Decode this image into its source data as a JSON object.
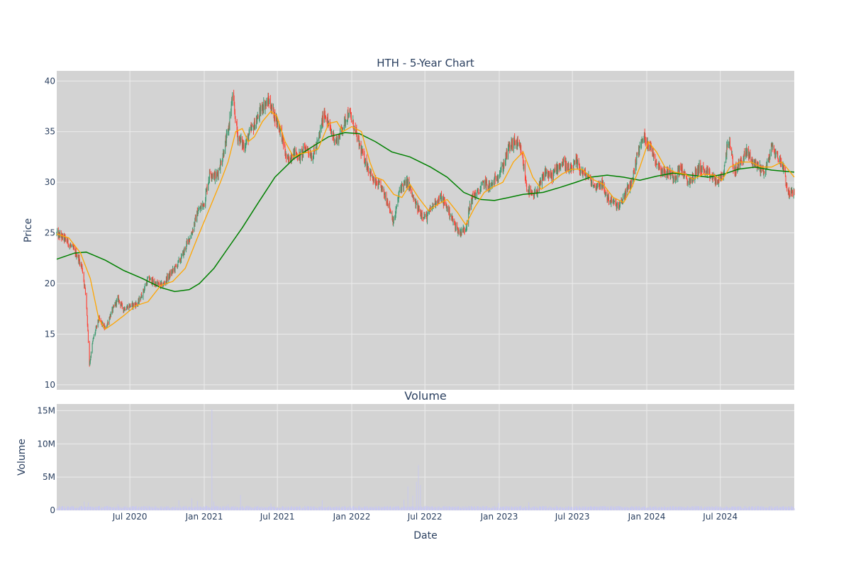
{
  "chart_data": [
    {
      "type": "candlestick",
      "title": "HTH - 5-Year Chart",
      "ylabel": "Price",
      "ylim": [
        9.5,
        41
      ],
      "yticks": [
        10,
        15,
        20,
        25,
        30,
        35,
        40
      ],
      "x_range": [
        "2020-01-02",
        "2024-12-31"
      ],
      "colors": {
        "up": "#3d9970",
        "down": "#ff4136",
        "ma_short": "#ffa500",
        "ma_long": "#008000",
        "plot_bg": "#d3d3d3",
        "grid": "#ececec"
      },
      "close_series": [
        [
          "2020-01-02",
          24.9
        ],
        [
          "2020-01-20",
          24.5
        ],
        [
          "2020-02-10",
          23.5
        ],
        [
          "2020-02-25",
          22.5
        ],
        [
          "2020-03-05",
          21.5
        ],
        [
          "2020-03-15",
          18.5
        ],
        [
          "2020-03-23",
          12.0
        ],
        [
          "2020-04-01",
          14.5
        ],
        [
          "2020-04-15",
          16.5
        ],
        [
          "2020-05-01",
          15.5
        ],
        [
          "2020-05-15",
          17.0
        ],
        [
          "2020-06-01",
          18.5
        ],
        [
          "2020-06-15",
          17.5
        ],
        [
          "2020-07-01",
          17.8
        ],
        [
          "2020-07-20",
          18.0
        ],
        [
          "2020-08-01",
          19.0
        ],
        [
          "2020-08-15",
          20.5
        ],
        [
          "2020-09-01",
          20.0
        ],
        [
          "2020-09-20",
          19.8
        ],
        [
          "2020-10-01",
          20.5
        ],
        [
          "2020-10-20",
          21.5
        ],
        [
          "2020-11-05",
          22.5
        ],
        [
          "2020-11-20",
          24.0
        ],
        [
          "2020-12-01",
          25.0
        ],
        [
          "2020-12-15",
          27.0
        ],
        [
          "2021-01-01",
          28.0
        ],
        [
          "2021-01-15",
          31.0
        ],
        [
          "2021-01-31",
          30.5
        ],
        [
          "2021-02-15",
          32.5
        ],
        [
          "2021-03-01",
          35.0
        ],
        [
          "2021-03-12",
          38.5
        ],
        [
          "2021-03-25",
          34.5
        ],
        [
          "2021-04-10",
          33.5
        ],
        [
          "2021-04-25",
          35.0
        ],
        [
          "2021-05-10",
          36.0
        ],
        [
          "2021-05-25",
          37.5
        ],
        [
          "2021-06-10",
          38.0
        ],
        [
          "2021-06-25",
          36.5
        ],
        [
          "2021-07-10",
          35.0
        ],
        [
          "2021-07-25",
          32.0
        ],
        [
          "2021-08-10",
          33.0
        ],
        [
          "2021-08-25",
          32.5
        ],
        [
          "2021-09-10",
          33.5
        ],
        [
          "2021-09-25",
          32.5
        ],
        [
          "2021-10-10",
          34.0
        ],
        [
          "2021-10-25",
          37.0
        ],
        [
          "2021-11-10",
          35.0
        ],
        [
          "2021-11-25",
          34.0
        ],
        [
          "2021-12-10",
          35.5
        ],
        [
          "2021-12-25",
          37.0
        ],
        [
          "2022-01-10",
          35.0
        ],
        [
          "2022-01-25",
          33.0
        ],
        [
          "2022-02-10",
          31.5
        ],
        [
          "2022-02-25",
          30.0
        ],
        [
          "2022-03-15",
          29.5
        ],
        [
          "2022-04-01",
          28.0
        ],
        [
          "2022-04-15",
          26.0
        ],
        [
          "2022-05-01",
          29.5
        ],
        [
          "2022-05-20",
          30.0
        ],
        [
          "2022-06-05",
          28.0
        ],
        [
          "2022-06-20",
          27.0
        ],
        [
          "2022-07-05",
          26.5
        ],
        [
          "2022-07-25",
          28.0
        ],
        [
          "2022-08-10",
          28.5
        ],
        [
          "2022-08-25",
          27.5
        ],
        [
          "2022-09-10",
          26.0
        ],
        [
          "2022-09-25",
          25.0
        ],
        [
          "2022-10-10",
          25.5
        ],
        [
          "2022-10-25",
          28.5
        ],
        [
          "2022-11-10",
          29.0
        ],
        [
          "2022-11-25",
          30.0
        ],
        [
          "2022-12-10",
          29.5
        ],
        [
          "2022-12-25",
          30.5
        ],
        [
          "2023-01-10",
          31.5
        ],
        [
          "2023-01-25",
          33.5
        ],
        [
          "2023-02-10",
          34.0
        ],
        [
          "2023-02-25",
          33.0
        ],
        [
          "2023-03-10",
          29.5
        ],
        [
          "2023-03-25",
          28.5
        ],
        [
          "2023-04-10",
          29.5
        ],
        [
          "2023-04-25",
          31.0
        ],
        [
          "2023-05-10",
          30.5
        ],
        [
          "2023-05-25",
          31.5
        ],
        [
          "2023-06-10",
          32.0
        ],
        [
          "2023-06-25",
          31.0
        ],
        [
          "2023-07-10",
          32.0
        ],
        [
          "2023-07-25",
          31.0
        ],
        [
          "2023-08-10",
          30.5
        ],
        [
          "2023-08-25",
          29.5
        ],
        [
          "2023-09-10",
          30.0
        ],
        [
          "2023-09-25",
          28.5
        ],
        [
          "2023-10-10",
          28.0
        ],
        [
          "2023-10-25",
          27.5
        ],
        [
          "2023-11-10",
          29.0
        ],
        [
          "2023-11-25",
          30.0
        ],
        [
          "2023-12-10",
          33.0
        ],
        [
          "2023-12-25",
          34.5
        ],
        [
          "2024-01-10",
          33.5
        ],
        [
          "2024-01-25",
          32.0
        ],
        [
          "2024-02-10",
          31.0
        ],
        [
          "2024-02-25",
          31.0
        ],
        [
          "2024-03-10",
          30.5
        ],
        [
          "2024-03-25",
          31.5
        ],
        [
          "2024-04-10",
          30.0
        ],
        [
          "2024-04-25",
          30.5
        ],
        [
          "2024-05-10",
          31.5
        ],
        [
          "2024-05-25",
          31.0
        ],
        [
          "2024-06-10",
          30.5
        ],
        [
          "2024-06-25",
          30.0
        ],
        [
          "2024-07-10",
          31.0
        ],
        [
          "2024-07-20",
          34.5
        ],
        [
          "2024-08-05",
          31.0
        ],
        [
          "2024-08-20",
          32.0
        ],
        [
          "2024-09-05",
          33.0
        ],
        [
          "2024-09-20",
          32.0
        ],
        [
          "2024-10-05",
          31.5
        ],
        [
          "2024-10-20",
          31.0
        ],
        [
          "2024-11-05",
          33.5
        ],
        [
          "2024-11-20",
          32.5
        ],
        [
          "2024-12-05",
          31.5
        ],
        [
          "2024-12-15",
          29.0
        ],
        [
          "2024-12-31",
          28.8
        ]
      ],
      "ma_short_series": [
        [
          "2020-01-02",
          24.9
        ],
        [
          "2020-02-01",
          24.5
        ],
        [
          "2020-03-01",
          23.0
        ],
        [
          "2020-03-25",
          20.5
        ],
        [
          "2020-04-15",
          16.5
        ],
        [
          "2020-05-01",
          15.5
        ],
        [
          "2020-05-20",
          16.0
        ],
        [
          "2020-06-15",
          16.8
        ],
        [
          "2020-07-15",
          17.8
        ],
        [
          "2020-08-15",
          18.2
        ],
        [
          "2020-09-15",
          19.8
        ],
        [
          "2020-10-15",
          20.2
        ],
        [
          "2020-11-15",
          21.5
        ],
        [
          "2020-12-15",
          24.5
        ],
        [
          "2021-01-10",
          27.0
        ],
        [
          "2021-02-10",
          30.0
        ],
        [
          "2021-03-01",
          32.0
        ],
        [
          "2021-03-20",
          35.0
        ],
        [
          "2021-04-05",
          35.3
        ],
        [
          "2021-04-20",
          34.0
        ],
        [
          "2021-05-05",
          34.5
        ],
        [
          "2021-05-25",
          36.0
        ],
        [
          "2021-06-15",
          37.0
        ],
        [
          "2021-06-30",
          36.5
        ],
        [
          "2021-07-20",
          34.0
        ],
        [
          "2021-08-10",
          32.5
        ],
        [
          "2021-08-25",
          32.8
        ],
        [
          "2021-09-20",
          33.0
        ],
        [
          "2021-10-10",
          33.3
        ],
        [
          "2021-11-05",
          35.8
        ],
        [
          "2021-11-25",
          36.0
        ],
        [
          "2021-12-10",
          35.0
        ],
        [
          "2022-01-01",
          35.5
        ],
        [
          "2022-01-25",
          35.0
        ],
        [
          "2022-02-15",
          32.0
        ],
        [
          "2022-03-01",
          30.5
        ],
        [
          "2022-03-20",
          30.2
        ],
        [
          "2022-04-15",
          28.8
        ],
        [
          "2022-05-05",
          28.5
        ],
        [
          "2022-05-25",
          29.8
        ],
        [
          "2022-06-15",
          28.5
        ],
        [
          "2022-07-10",
          27.2
        ],
        [
          "2022-08-01",
          27.8
        ],
        [
          "2022-08-25",
          28.3
        ],
        [
          "2022-09-20",
          27.0
        ],
        [
          "2022-10-10",
          25.8
        ],
        [
          "2022-11-01",
          27.5
        ],
        [
          "2022-11-25",
          29.0
        ],
        [
          "2022-12-15",
          29.5
        ],
        [
          "2023-01-10",
          30.0
        ],
        [
          "2023-02-05",
          32.0
        ],
        [
          "2023-03-01",
          33.0
        ],
        [
          "2023-03-25",
          30.5
        ],
        [
          "2023-04-15",
          29.3
        ],
        [
          "2023-05-10",
          30.0
        ],
        [
          "2023-06-05",
          30.8
        ],
        [
          "2023-06-30",
          31.3
        ],
        [
          "2023-07-25",
          31.3
        ],
        [
          "2023-08-20",
          30.3
        ],
        [
          "2023-09-15",
          29.8
        ],
        [
          "2023-10-10",
          28.5
        ],
        [
          "2023-11-05",
          28.0
        ],
        [
          "2023-11-25",
          29.5
        ],
        [
          "2023-12-15",
          31.5
        ],
        [
          "2024-01-05",
          34.0
        ],
        [
          "2024-01-25",
          33.0
        ],
        [
          "2024-02-15",
          31.5
        ],
        [
          "2024-03-10",
          31.0
        ],
        [
          "2024-04-05",
          30.8
        ],
        [
          "2024-04-25",
          30.3
        ],
        [
          "2024-05-20",
          30.8
        ],
        [
          "2024-06-15",
          30.7
        ],
        [
          "2024-07-05",
          30.2
        ],
        [
          "2024-07-25",
          31.5
        ],
        [
          "2024-08-20",
          32.0
        ],
        [
          "2024-09-15",
          32.0
        ],
        [
          "2024-10-10",
          31.5
        ],
        [
          "2024-11-05",
          31.5
        ],
        [
          "2024-11-30",
          32.0
        ],
        [
          "2024-12-15",
          31.3
        ],
        [
          "2024-12-31",
          30.5
        ]
      ],
      "ma_long_series": [
        [
          "2020-01-02",
          22.4
        ],
        [
          "2020-02-15",
          23.0
        ],
        [
          "2020-03-15",
          23.1
        ],
        [
          "2020-05-01",
          22.3
        ],
        [
          "2020-06-15",
          21.3
        ],
        [
          "2020-08-01",
          20.5
        ],
        [
          "2020-09-15",
          19.6
        ],
        [
          "2020-10-20",
          19.2
        ],
        [
          "2020-11-25",
          19.4
        ],
        [
          "2020-12-20",
          20.0
        ],
        [
          "2021-01-25",
          21.5
        ],
        [
          "2021-03-01",
          23.5
        ],
        [
          "2021-04-05",
          25.5
        ],
        [
          "2021-05-15",
          28.0
        ],
        [
          "2021-06-25",
          30.5
        ],
        [
          "2021-08-10",
          32.3
        ],
        [
          "2021-09-25",
          33.5
        ],
        [
          "2021-11-05",
          34.5
        ],
        [
          "2021-12-15",
          34.9
        ],
        [
          "2022-01-20",
          34.8
        ],
        [
          "2022-03-01",
          34.0
        ],
        [
          "2022-04-10",
          33.0
        ],
        [
          "2022-05-25",
          32.5
        ],
        [
          "2022-07-15",
          31.5
        ],
        [
          "2022-08-25",
          30.5
        ],
        [
          "2022-10-05",
          29.0
        ],
        [
          "2022-11-15",
          28.3
        ],
        [
          "2022-12-20",
          28.2
        ],
        [
          "2023-01-25",
          28.5
        ],
        [
          "2023-03-01",
          28.8
        ],
        [
          "2023-04-20",
          29.0
        ],
        [
          "2023-06-01",
          29.5
        ],
        [
          "2023-07-10",
          30.0
        ],
        [
          "2023-08-15",
          30.5
        ],
        [
          "2023-09-25",
          30.7
        ],
        [
          "2023-11-05",
          30.5
        ],
        [
          "2023-12-15",
          30.2
        ],
        [
          "2024-01-25",
          30.6
        ],
        [
          "2024-03-05",
          30.9
        ],
        [
          "2024-04-20",
          30.7
        ],
        [
          "2024-06-01",
          30.5
        ],
        [
          "2024-07-10",
          30.8
        ],
        [
          "2024-08-15",
          31.3
        ],
        [
          "2024-09-25",
          31.5
        ],
        [
          "2024-11-05",
          31.2
        ],
        [
          "2024-12-31",
          31.0
        ]
      ],
      "range_notes": {
        "low_point": [
          "2020-03-23",
          11.0
        ],
        "high_point": [
          "2021-03-12",
          39.5
        ]
      }
    },
    {
      "type": "bar",
      "title": "Volume",
      "ylabel": "Volume",
      "xlabel": "Date",
      "ylim": [
        0,
        16000000
      ],
      "yticks": [
        {
          "v": 0,
          "label": "0"
        },
        {
          "v": 5000000,
          "label": "5M"
        },
        {
          "v": 10000000,
          "label": "10M"
        },
        {
          "v": 15000000,
          "label": "15M"
        }
      ],
      "xticks": [
        {
          "date": "2020-07-01",
          "label": "Jul 2020"
        },
        {
          "date": "2021-01-01",
          "label": "Jan 2021"
        },
        {
          "date": "2021-07-01",
          "label": "Jul 2021"
        },
        {
          "date": "2022-01-01",
          "label": "Jan 2022"
        },
        {
          "date": "2022-07-01",
          "label": "Jul 2022"
        },
        {
          "date": "2023-01-01",
          "label": "Jan 2023"
        },
        {
          "date": "2023-07-01",
          "label": "Jul 2023"
        },
        {
          "date": "2024-01-01",
          "label": "Jan 2024"
        },
        {
          "date": "2024-07-01",
          "label": "Jul 2024"
        }
      ],
      "bar_color": "#c8c8f0",
      "baseline_volume": 450000,
      "spikes": [
        [
          "2020-03-10",
          1300000
        ],
        [
          "2020-03-20",
          1200000
        ],
        [
          "2020-04-05",
          1000000
        ],
        [
          "2020-06-01",
          900000
        ],
        [
          "2020-10-30",
          1500000
        ],
        [
          "2020-12-01",
          1800000
        ],
        [
          "2020-12-15",
          1400000
        ],
        [
          "2021-01-20",
          15200000
        ],
        [
          "2021-01-25",
          1300000
        ],
        [
          "2021-03-01",
          900000
        ],
        [
          "2021-04-01",
          2300000
        ],
        [
          "2021-06-15",
          1000000
        ],
        [
          "2021-10-20",
          1500000
        ],
        [
          "2022-05-10",
          1600000
        ],
        [
          "2022-05-20",
          3600000
        ],
        [
          "2022-06-01",
          2200000
        ],
        [
          "2022-06-10",
          4300000
        ],
        [
          "2022-06-15",
          6800000
        ],
        [
          "2022-06-20",
          3800000
        ],
        [
          "2022-06-25",
          1500000
        ],
        [
          "2022-10-01",
          2900000
        ],
        [
          "2022-12-30",
          1100000
        ],
        [
          "2023-03-15",
          1200000
        ],
        [
          "2023-12-30",
          1000000
        ]
      ]
    }
  ]
}
